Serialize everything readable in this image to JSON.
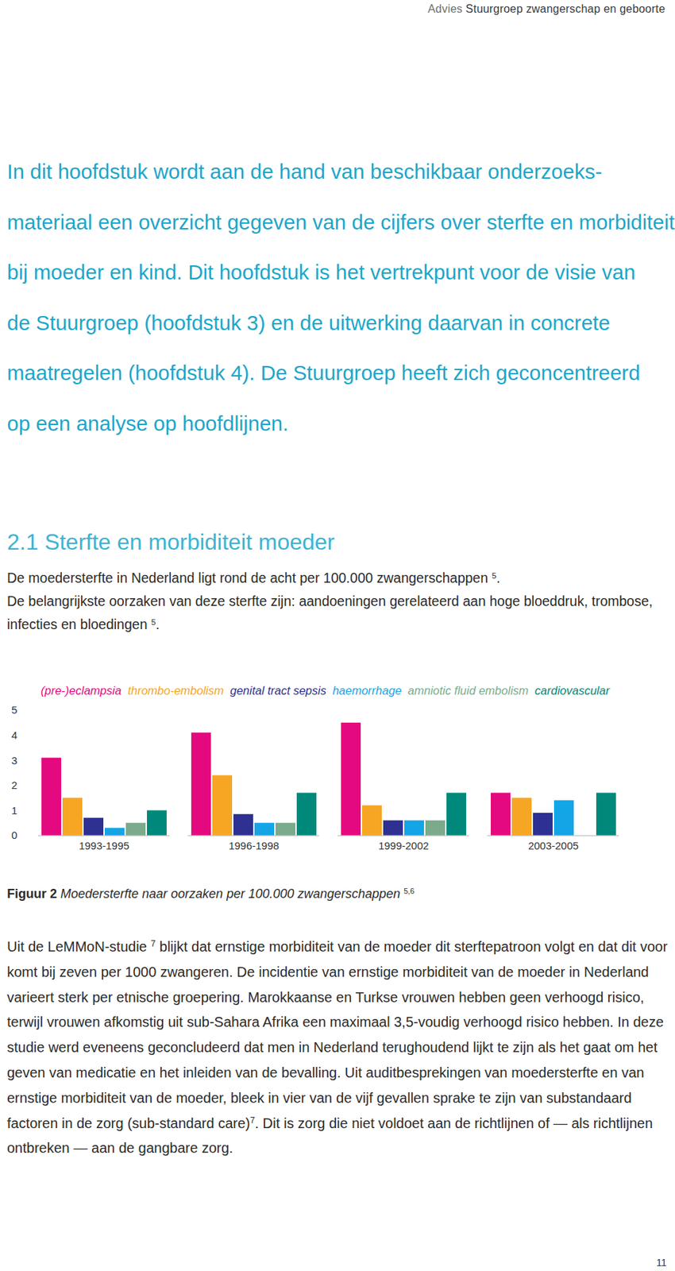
{
  "header": [
    "Advies ",
    "Stuurgroep zwangerschap en geboorte"
  ],
  "intro_lines": [
    "In dit hoofdstuk wordt aan de hand van beschikbaar onderzoeks-",
    "materiaal een overzicht gegeven van de cijfers over sterfte en morbiditeit",
    "bij moeder en kind. Dit hoofdstuk is het vertrekpunt voor de visie van",
    "de Stuurgroep (hoofdstuk 3) en de uitwerking daarvan in concrete",
    "maatregelen (hoofdstuk 4). De Stuurgroep heeft zich geconcentreerd",
    "op een analyse op hoofdlijnen."
  ],
  "section_title": "2.1 Sterfte en morbiditeit moeder",
  "lead_paragraphs": [
    [
      "De moedersterfte in Nederland ligt rond de acht per 100.000 zwangerschappen ",
      {
        "sup": "5"
      },
      "."
    ],
    [
      "De belangrijkste oorzaken van deze sterfte zijn: aandoeningen gerelateerd aan hoge bloeddruk, trombose, infecties en bloedingen ",
      {
        "sup": "5"
      },
      "."
    ]
  ],
  "chart_data": {
    "type": "bar",
    "categories": [
      "1993-1995",
      "1996-1998",
      "1999-2002",
      "2003-2005"
    ],
    "series": [
      {
        "name": "(pre-)eclampsia",
        "color": "#e5097f",
        "values": [
          3.1,
          4.1,
          4.5,
          1.7
        ]
      },
      {
        "name": "thrombo-embolism",
        "color": "#f6a623",
        "values": [
          1.5,
          2.4,
          1.2,
          1.5
        ]
      },
      {
        "name": "genital tract sepsis",
        "color": "#2e3192",
        "values": [
          0.7,
          0.85,
          0.6,
          0.9
        ]
      },
      {
        "name": "haemorrhage",
        "color": "#14a5e6",
        "values": [
          0.3,
          0.5,
          0.6,
          1.4
        ]
      },
      {
        "name": "amniotic fluid embolism",
        "color": "#7aab8b",
        "values": [
          0.5,
          0.5,
          0.6,
          null
        ]
      },
      {
        "name": "cardiovascular",
        "color": "#00897b",
        "values": [
          1.0,
          1.7,
          1.7,
          1.7
        ]
      }
    ],
    "ylim": [
      0,
      5
    ],
    "yticks": [
      0,
      1,
      2,
      3,
      4,
      5
    ],
    "grid": false,
    "legend": "top"
  },
  "caption": {
    "label": "Figuur 2",
    "text": "Moedersterfte naar oorzaken per 100.000 zwangerschappen",
    "sup": "5,6"
  },
  "body_paragraphs": [
    [
      "Uit de LeMMoN-studie ",
      {
        "sup": "7"
      },
      " blijkt dat ernstige morbiditeit van de moeder dit sterftepatroon volgt en dat dit voor komt bij zeven per 1000 zwangeren. De incidentie van ernstige morbiditeit van de moeder in Nederland varieert sterk per etnische groepering. Marokkaanse en Turkse vrouwen hebben geen verhoogd risico, terwijl vrouwen afkomstig uit sub-Sahara Afrika een maximaal 3,5-voudig verhoogd risico hebben. In deze studie werd eveneens geconcludeerd dat men in Nederland terughoudend lijkt te zijn als het gaat om het geven van medicatie en het inleiden van de bevalling. Uit auditbesprekingen van moedersterfte en van ernstige morbiditeit van de moeder, bleek in vier van de vijf gevallen sprake te zijn van substandaard factoren in de zorg (sub-standard care)",
      {
        "sup": "7"
      },
      ". Dit is zorg die niet voldoet aan de richtlijnen of — als richtlijnen ontbreken — aan de gangbare zorg."
    ]
  ],
  "page_number": "11"
}
